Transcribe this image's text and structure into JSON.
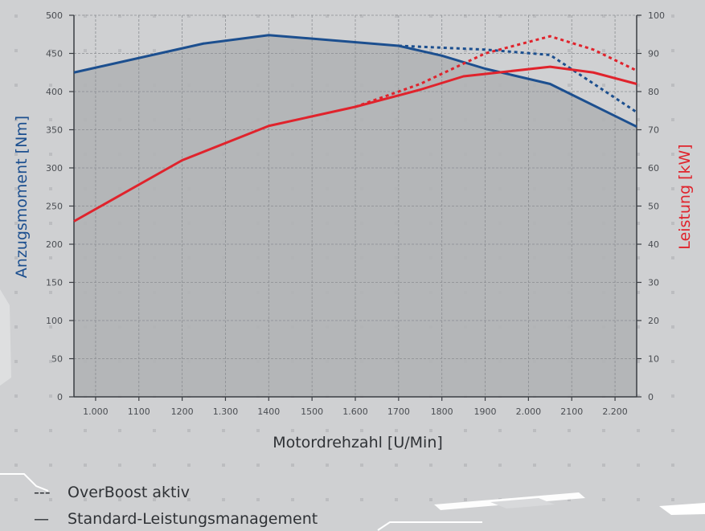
{
  "chart_data": {
    "type": "line",
    "xlabel": "Motordrehzahl [U/Min]",
    "ylabel_left": "Anzugsmoment [Nm]",
    "ylabel_right": "Leistung [kW]",
    "x": [
      1000,
      1100,
      1200,
      1300,
      1400,
      1500,
      1600,
      1700,
      1800,
      1900,
      2000,
      2100,
      2200
    ],
    "x_tick_labels": [
      "1.000",
      "1100",
      "1200",
      "1.300",
      "1400",
      "1500",
      "1.600",
      "1700",
      "1800",
      "1900",
      "2.000",
      "2100",
      "2.200"
    ],
    "xlim": [
      950,
      2250
    ],
    "ylim_left": [
      0,
      500
    ],
    "ylim_right": [
      0,
      100
    ],
    "yticks_left": [
      "0",
      "50",
      "100",
      "150",
      "200",
      "250",
      "300",
      "350",
      "400",
      "450",
      "500"
    ],
    "yticks_right": [
      "0",
      "10",
      "20",
      "30",
      "40",
      "50",
      "60",
      "70",
      "80",
      "90",
      "100"
    ],
    "grid": true,
    "colors": {
      "torque": "#1c4f8f",
      "power": "#e0232c",
      "axis": "#3a3d42",
      "grid": "#8a8d91"
    },
    "series": [
      {
        "axis": "left",
        "style": "solid",
        "color": "#1c4f8f",
        "points": [
          [
            950,
            425
          ],
          [
            1250,
            463
          ],
          [
            1400,
            474
          ],
          [
            1700,
            460
          ],
          [
            1800,
            447
          ],
          [
            1900,
            430
          ],
          [
            2050,
            410
          ],
          [
            2250,
            354
          ]
        ]
      },
      {
        "axis": "left",
        "style": "dashed",
        "color": "#1c4f8f",
        "points": [
          [
            1700,
            460
          ],
          [
            1900,
            455
          ],
          [
            2050,
            448
          ],
          [
            2250,
            373
          ]
        ]
      },
      {
        "axis": "right",
        "style": "solid",
        "color": "#e0232c",
        "points": [
          [
            950,
            46
          ],
          [
            1200,
            62
          ],
          [
            1400,
            71
          ],
          [
            1600,
            76
          ],
          [
            1750,
            80.5
          ],
          [
            1850,
            84
          ],
          [
            2050,
            86.5
          ],
          [
            2150,
            85
          ],
          [
            2250,
            82
          ]
        ]
      },
      {
        "axis": "right",
        "style": "dashed",
        "color": "#e0232c",
        "points": [
          [
            1600,
            76
          ],
          [
            1750,
            82
          ],
          [
            1900,
            90
          ],
          [
            2050,
            94.5
          ],
          [
            2150,
            91
          ],
          [
            2250,
            85.5
          ]
        ]
      }
    ]
  },
  "legend": [
    {
      "symbol": "---",
      "label": "OverBoost aktiv"
    },
    {
      "symbol": "—",
      "label": "Standard-Leistungsmanagement"
    }
  ]
}
